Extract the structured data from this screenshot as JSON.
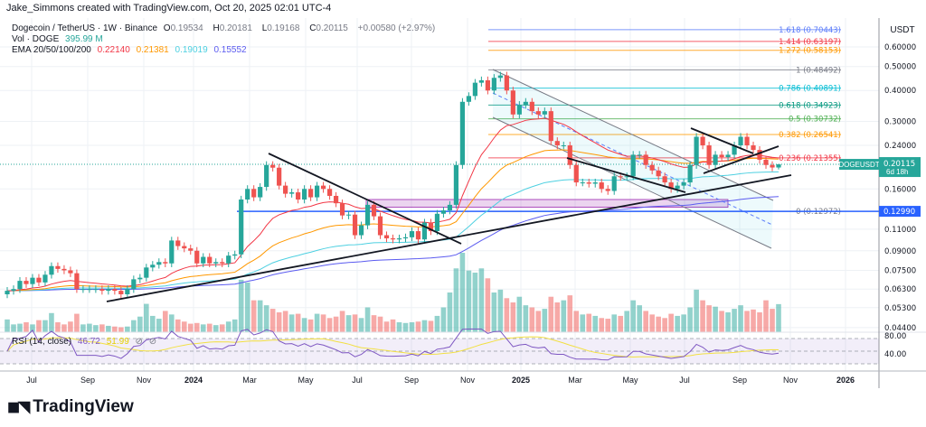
{
  "credit": "Jake_Simmons created with TradingView.com, Oct 20, 2025 02:01 UTC-4",
  "legend": {
    "symbol": "Dogecoin / TetherUS · 1W · Binance",
    "o_label": "O",
    "o": "0.19534",
    "h_label": "H",
    "h": "0.20181",
    "l_label": "L",
    "l": "0.19168",
    "c_label": "C",
    "c": "0.20115",
    "change": "+0.00580 (+2.97%)",
    "vol_label": "Vol · DOGE",
    "vol": "395.99 M",
    "ema_label": "EMA 20/50/100/200",
    "ema20": "0.22140",
    "ema50": "0.21381",
    "ema100": "0.19019",
    "ema200": "0.15552"
  },
  "rsi": {
    "label": "RSI (14, close)",
    "value": "46.72",
    "ma": "51.99",
    "levels": [
      "80.00",
      "40.00"
    ]
  },
  "axis": {
    "currency": "USDT",
    "price_ticks": [
      "0.60000",
      "0.50000",
      "0.40000",
      "0.30000",
      "0.24000",
      "0.16000",
      "0.11000",
      "0.09000",
      "0.07500",
      "0.06300",
      "0.05300",
      "0.04400"
    ],
    "time_ticks": [
      "Jul",
      "Sep",
      "Nov",
      "2024",
      "Mar",
      "May",
      "Jul",
      "Sep",
      "Nov",
      "2025",
      "Mar",
      "May",
      "Jul",
      "Sep",
      "Nov",
      "2026"
    ],
    "last_label": "DOGEUSDT",
    "last_price": "0.20115",
    "countdown": "6d 18h",
    "hline_price": "0.12990"
  },
  "colors": {
    "up": "#26a69a",
    "down": "#ef5350",
    "ema20": "#f23645",
    "ema50": "#ff9800",
    "ema100": "#4dd0e1",
    "ema200": "#5b5bf0",
    "hline": "#2962ff",
    "rsi": "#7e57c2",
    "rsi_ma": "#f2e043"
  },
  "fib": [
    {
      "label": "1.618 (0.70443)",
      "price": 0.70443,
      "color": "#5b7cfa"
    },
    {
      "label": "1.414 (0.63197)",
      "price": 0.63197,
      "color": "#f23645"
    },
    {
      "label": "1.272 (0.58153)",
      "price": 0.58153,
      "color": "#ff9800"
    },
    {
      "label": "1 (0.48492)",
      "price": 0.48492,
      "color": "#787b86"
    },
    {
      "label": "0.786 (0.40891)",
      "price": 0.40891,
      "color": "#00bcd4"
    },
    {
      "label": "0.618 (0.34923)",
      "price": 0.34923,
      "color": "#089981"
    },
    {
      "label": "0.5 (0.30732)",
      "price": 0.30732,
      "color": "#4caf50"
    },
    {
      "label": "0.382 (0.26541)",
      "price": 0.26541,
      "color": "#ff9800"
    },
    {
      "label": "0.236 (0.21355)",
      "price": 0.21355,
      "color": "#f23645"
    },
    {
      "label": "0 (0.12972)",
      "price": 0.12972,
      "color": "#787b86"
    }
  ],
  "brand": "TradingView",
  "chart_data": {
    "type": "candlestick",
    "interval": "1W",
    "scale": "log",
    "ylim": [
      0.044,
      0.72
    ],
    "close": [
      0.062,
      0.063,
      0.068,
      0.066,
      0.07,
      0.067,
      0.072,
      0.078,
      0.076,
      0.075,
      0.073,
      0.063,
      0.063,
      0.063,
      0.063,
      0.062,
      0.063,
      0.062,
      0.06,
      0.063,
      0.069,
      0.07,
      0.077,
      0.079,
      0.081,
      0.08,
      0.099,
      0.094,
      0.092,
      0.09,
      0.08,
      0.085,
      0.08,
      0.081,
      0.08,
      0.086,
      0.087,
      0.145,
      0.16,
      0.148,
      0.163,
      0.2,
      0.195,
      0.165,
      0.153,
      0.155,
      0.145,
      0.16,
      0.148,
      0.165,
      0.16,
      0.15,
      0.14,
      0.125,
      0.126,
      0.104,
      0.114,
      0.138,
      0.124,
      0.104,
      0.101,
      0.1,
      0.101,
      0.102,
      0.108,
      0.1,
      0.117,
      0.108,
      0.127,
      0.131,
      0.138,
      0.2,
      0.36,
      0.38,
      0.43,
      0.44,
      0.4,
      0.45,
      0.46,
      0.4,
      0.32,
      0.35,
      0.36,
      0.33,
      0.32,
      0.33,
      0.25,
      0.24,
      0.24,
      0.2,
      0.17,
      0.17,
      0.168,
      0.17,
      0.16,
      0.157,
      0.18,
      0.179,
      0.18,
      0.22,
      0.22,
      0.2,
      0.19,
      0.18,
      0.17,
      0.16,
      0.165,
      0.17,
      0.2,
      0.26,
      0.24,
      0.2,
      0.22,
      0.215,
      0.22,
      0.24,
      0.26,
      0.24,
      0.23,
      0.21,
      0.2,
      0.19534,
      0.20115
    ],
    "volume_m": [
      180,
      110,
      120,
      140,
      110,
      170,
      170,
      270,
      140,
      110,
      150,
      260,
      110,
      120,
      100,
      110,
      90,
      80,
      70,
      80,
      170,
      220,
      400,
      230,
      190,
      300,
      250,
      180,
      150,
      120,
      130,
      110,
      120,
      100,
      110,
      150,
      180,
      740,
      700,
      450,
      450,
      380,
      330,
      280,
      300,
      250,
      260,
      200,
      180,
      260,
      250,
      200,
      220,
      300,
      240,
      250,
      200,
      350,
      240,
      220,
      150,
      180,
      140,
      130,
      140,
      150,
      170,
      160,
      230,
      350,
      560,
      900,
      1120,
      870,
      840,
      900,
      760,
      560,
      600,
      480,
      420,
      500,
      380,
      350,
      300,
      330,
      500,
      420,
      450,
      520,
      300,
      250,
      260,
      230,
      200,
      190,
      250,
      230,
      300,
      450,
      380,
      300,
      250,
      220,
      200,
      260,
      230,
      250,
      350,
      600,
      450,
      380,
      360,
      300,
      280,
      330,
      380,
      300,
      320,
      280,
      450,
      330,
      396
    ],
    "last": {
      "open": 0.19534,
      "high": 0.20181,
      "low": 0.19168,
      "close": 0.20115
    }
  }
}
